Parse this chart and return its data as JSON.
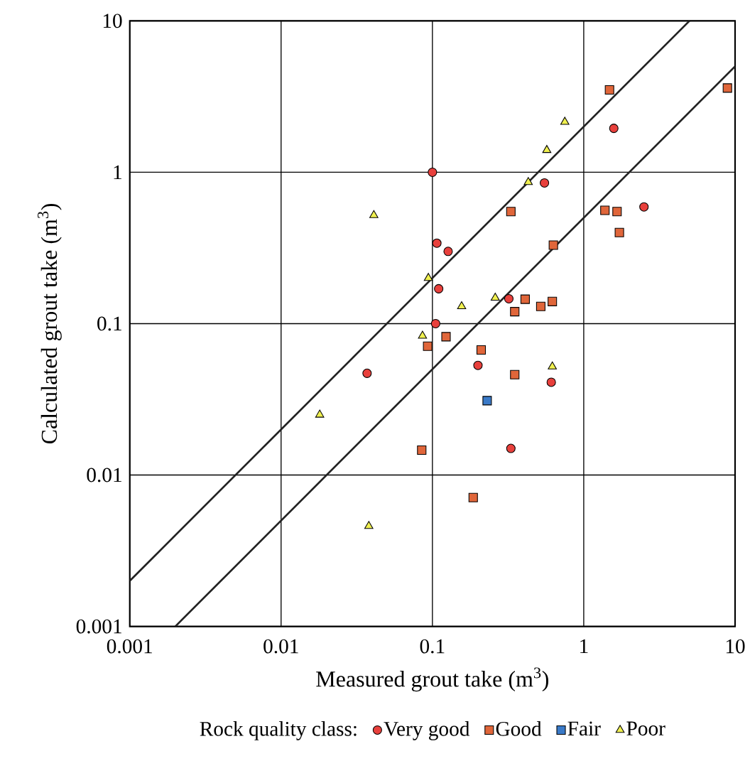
{
  "chart_data": {
    "type": "scatter",
    "xlabel": "Measured grout take (m$^{3}$)",
    "ylabel": "Calculated grout take (m$^{3}$)",
    "legend_title": "Rock quality class:",
    "log": "xy",
    "grid": true,
    "legend": "bottom",
    "xlim": [
      0.001,
      10
    ],
    "ylim": [
      0.001,
      10
    ],
    "xticks": [
      0.001,
      0.01,
      0.1,
      1,
      10
    ],
    "yticks": [
      0.001,
      0.01,
      0.1,
      1,
      10
    ],
    "series": [
      {
        "name": "Very good",
        "color": "#e8403c",
        "marker": "circle",
        "x": [
          0.1,
          0.55,
          1.58,
          2.5,
          0.107,
          0.127,
          0.11,
          0.105,
          0.32,
          0.037,
          0.2,
          0.61,
          0.33
        ],
        "values": [
          1.0,
          0.85,
          1.95,
          0.59,
          0.34,
          0.3,
          0.17,
          0.1,
          0.146,
          0.047,
          0.053,
          0.041,
          0.015
        ]
      },
      {
        "name": "Good",
        "color": "#e0663a",
        "marker": "square",
        "x": [
          1.48,
          8.9,
          0.33,
          1.38,
          1.66,
          1.72,
          0.63,
          0.35,
          0.41,
          0.52,
          0.62,
          0.093,
          0.123,
          0.21,
          0.35,
          0.085,
          0.186
        ],
        "values": [
          3.5,
          3.6,
          0.55,
          0.56,
          0.55,
          0.4,
          0.33,
          0.12,
          0.145,
          0.13,
          0.14,
          0.071,
          0.082,
          0.067,
          0.046,
          0.0146,
          0.0071
        ]
      },
      {
        "name": "Fair",
        "color": "#3a7ac8",
        "marker": "square",
        "x": [
          0.23
        ],
        "values": [
          0.031
        ]
      },
      {
        "name": "Poor",
        "color": "#f0f050",
        "marker": "triangle",
        "x": [
          0.75,
          0.57,
          0.43,
          0.041,
          0.094,
          0.156,
          0.26,
          0.086,
          0.62,
          0.018,
          0.038
        ],
        "values": [
          2.15,
          1.4,
          0.86,
          0.52,
          0.2,
          0.13,
          0.148,
          0.083,
          0.052,
          0.025,
          0.0046
        ]
      },
      {
        "type": "line",
        "color": "#222222",
        "marker": "none",
        "x": [
          0.001,
          5
        ],
        "values": [
          0.002,
          10
        ]
      },
      {
        "type": "line",
        "color": "#222222",
        "marker": "none",
        "x": [
          0.002,
          10
        ],
        "values": [
          0.001,
          5
        ]
      }
    ]
  }
}
